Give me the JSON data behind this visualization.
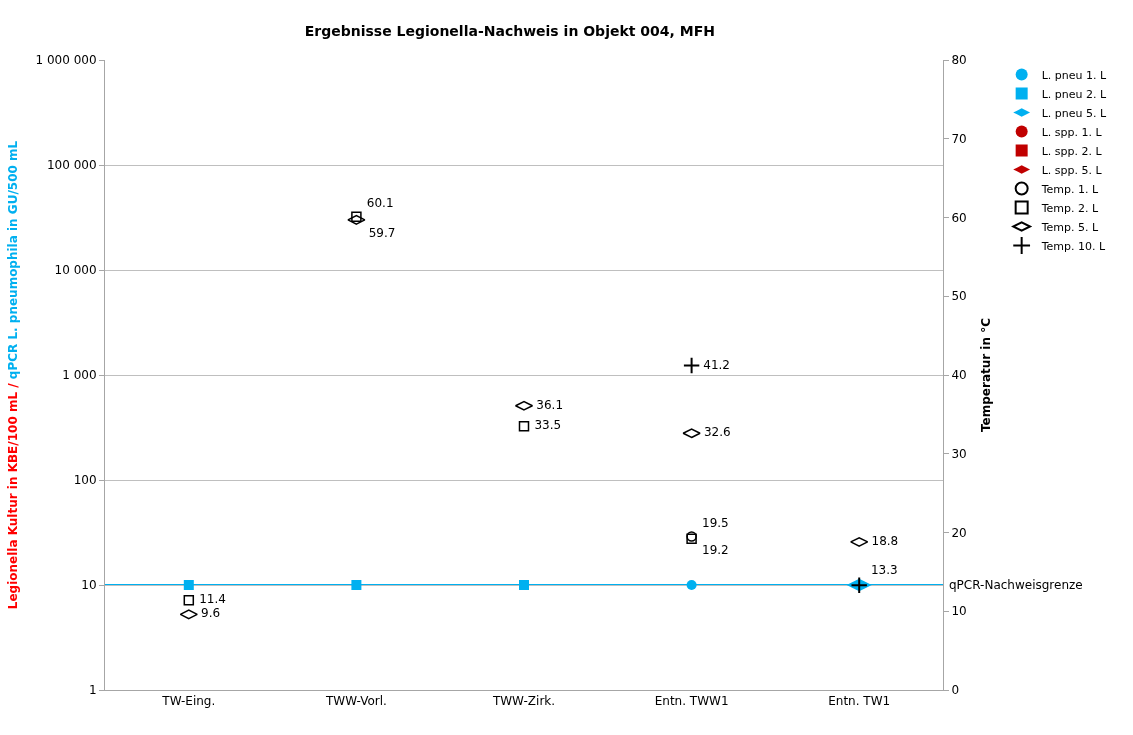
{
  "chart_data": {
    "type": "scatter",
    "title": "Ergebnisse Legionella-Nachweis in Objekt 004, MFH",
    "categories": [
      "TW-Eing.",
      "TWW-Vorl.",
      "TWW-Zirk.",
      "Entn. TWW1",
      "Entn. TW1"
    ],
    "ylabel": "Legionella Kultur in KBE/100 mL / qPCR L. pneumophila in GU/500 mL",
    "y2label": "Temperatur in °C",
    "log": "y",
    "ylim": [
      1,
      1000000
    ],
    "yticks": [
      1,
      10,
      100,
      {
        "value": 1000,
        "label": "1 000"
      },
      {
        "value": 10000,
        "label": "10 000"
      },
      {
        "value": 100000,
        "label": "100 000"
      },
      {
        "value": 1000000,
        "label": "1 000 000"
      }
    ],
    "y2lim": [
      0,
      80
    ],
    "y2ticks": [
      0,
      10,
      20,
      30,
      40,
      50,
      60,
      70,
      80
    ],
    "grid": "y",
    "legend": "right",
    "ref_lines": [
      {
        "axis": "y",
        "value": 10,
        "label": "qPCR-Nachweisgrenze",
        "color": "#00b0f0",
        "line_style": "solid"
      }
    ],
    "series": [
      {
        "name": "L. pneu 1. L",
        "color": "#00b0f0",
        "marker": "circle",
        "values": [
          null,
          null,
          null,
          10,
          null
        ]
      },
      {
        "name": "L. pneu 2. L",
        "color": "#00b0f0",
        "marker": "square",
        "values": [
          10,
          10,
          10,
          null,
          null
        ]
      },
      {
        "name": "L. pneu 5. L",
        "color": "#00b0f0",
        "marker": "diamond",
        "values": [
          null,
          null,
          null,
          null,
          10
        ]
      },
      {
        "name": "L. spp. 1. L",
        "color": "#c00000",
        "marker": "circle",
        "values": [
          null,
          null,
          null,
          null,
          null
        ]
      },
      {
        "name": "L. spp. 2. L",
        "color": "#c00000",
        "marker": "square",
        "values": [
          null,
          null,
          null,
          null,
          null
        ]
      },
      {
        "name": "L. spp. 5. L",
        "color": "#c00000",
        "marker": "diamond",
        "values": [
          null,
          null,
          null,
          null,
          null
        ]
      },
      {
        "name": "Temp. 1. L",
        "color": "#000000",
        "marker": "circle-open",
        "axis": "y2",
        "values": [
          null,
          null,
          null,
          19.5,
          null
        ],
        "value_labels": [
          null,
          null,
          null,
          "19.5",
          null
        ]
      },
      {
        "name": "Temp. 2. L",
        "color": "#000000",
        "marker": "square-open",
        "axis": "y2",
        "values": [
          11.4,
          60.1,
          33.5,
          19.2,
          null
        ],
        "value_labels": [
          "11.4",
          "60.1",
          "33.5",
          "19.2",
          null
        ]
      },
      {
        "name": "Temp. 5. L",
        "color": "#000000",
        "marker": "diamond",
        "axis": "y2",
        "values": [
          9.6,
          59.7,
          36.1,
          32.6,
          18.8
        ],
        "value_labels": [
          "9.6",
          "59.7",
          "36.1",
          "32.6",
          "18.8"
        ]
      },
      {
        "name": "Temp. 10. L",
        "color": "#000000",
        "marker": "cross",
        "axis": "y2",
        "values": [
          null,
          null,
          null,
          41.2,
          13.3
        ],
        "value_labels": [
          null,
          null,
          null,
          "41.2",
          "13.3"
        ]
      }
    ]
  }
}
